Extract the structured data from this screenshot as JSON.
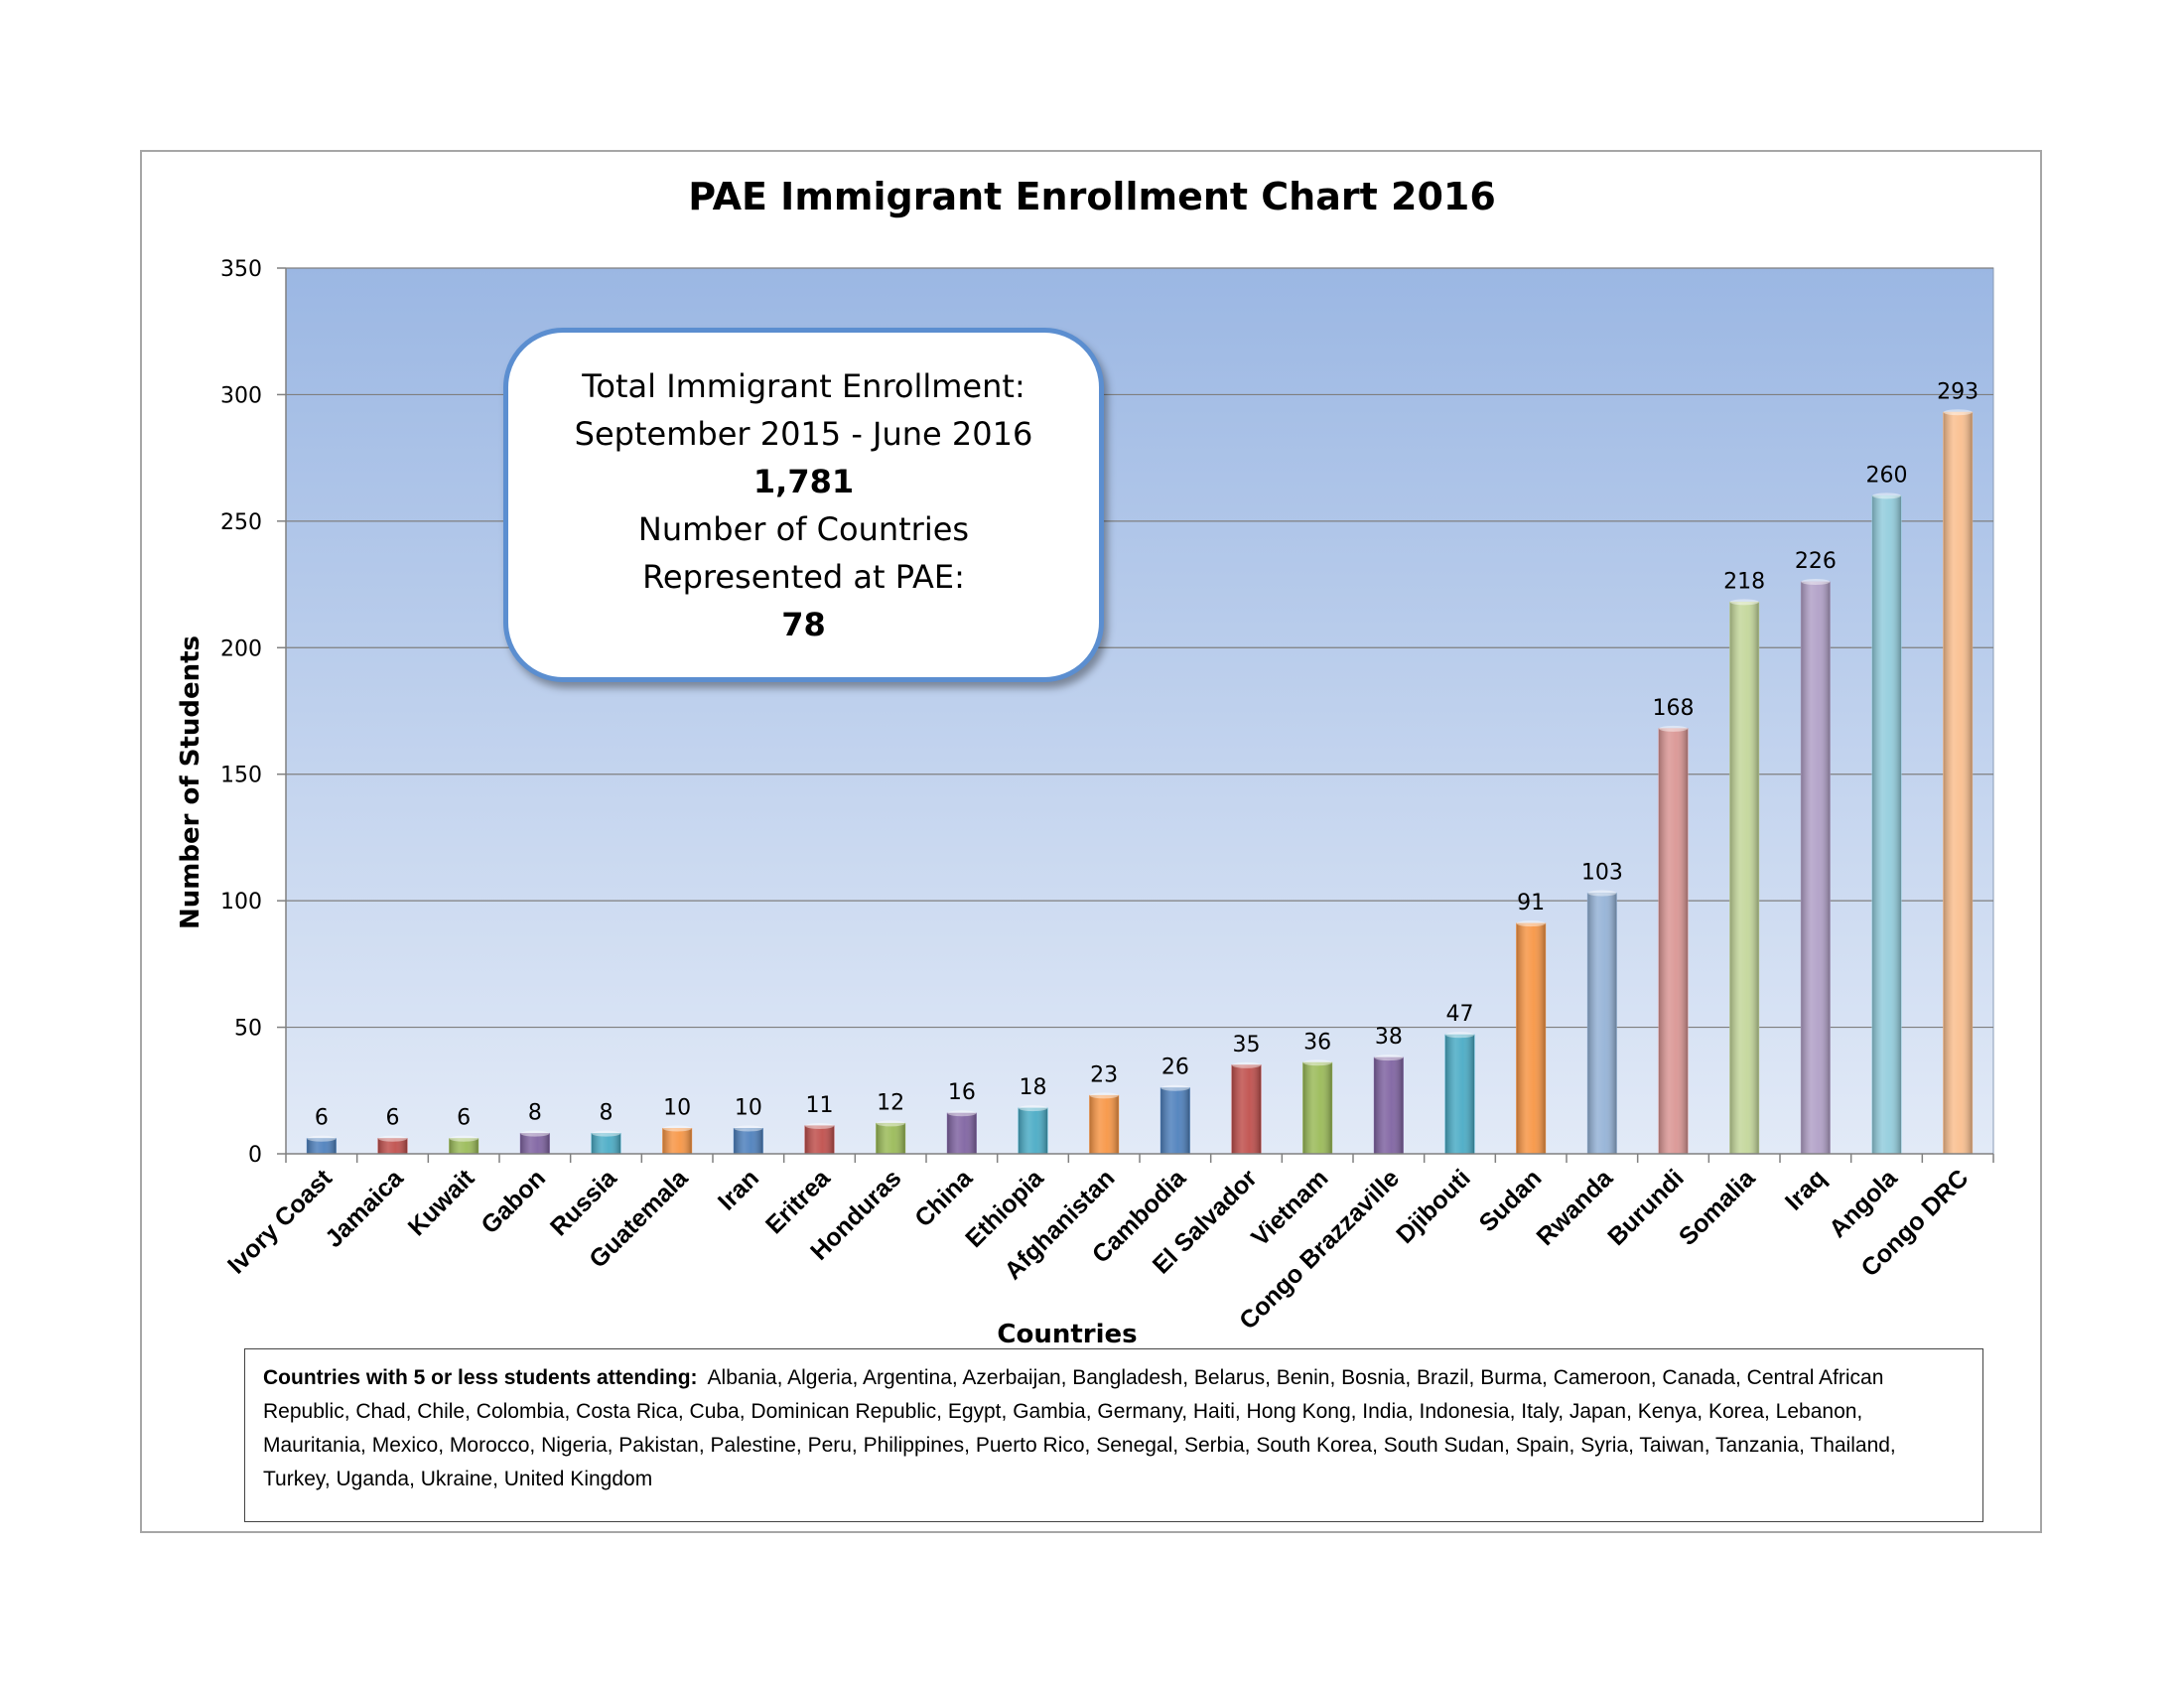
{
  "chart_data": {
    "type": "bar",
    "title": "PAE Immigrant Enrollment Chart 2016",
    "xlabel": "Countries",
    "ylabel": "Number of Students",
    "ylim": [
      0,
      350
    ],
    "yticks": [
      "0",
      "50",
      "100",
      "150",
      "200",
      "250",
      "300",
      "350"
    ],
    "grid": true,
    "categories": [
      "Ivory Coast",
      "Jamaica",
      "Kuwait",
      "Gabon",
      "Russia",
      "Guatemala",
      "Iran",
      "Eritrea",
      "Honduras",
      "China",
      "Ethiopia",
      "Afghanistan",
      "Cambodia",
      "El Salvador",
      "Vietnam",
      "Congo Brazzaville",
      "Djibouti",
      "Sudan",
      "Rwanda",
      "Burundi",
      "Somalia",
      "Iraq",
      "Angola",
      "Congo DRC"
    ],
    "values": [
      6,
      6,
      6,
      8,
      8,
      10,
      10,
      11,
      12,
      16,
      18,
      23,
      26,
      35,
      36,
      38,
      47,
      91,
      103,
      168,
      218,
      226,
      260,
      293
    ],
    "bar_colors": [
      "#4f81bd",
      "#c0504d",
      "#9bbb59",
      "#8064a2",
      "#4bacc6",
      "#f79646",
      "#4f81bd",
      "#c0504d",
      "#9bbb59",
      "#8064a2",
      "#4bacc6",
      "#f79646",
      "#4f81bd",
      "#c0504d",
      "#9bbb59",
      "#8064a2",
      "#4bacc6",
      "#f79646",
      "#95b3d7",
      "#da9694",
      "#c4d79b",
      "#b1a0c7",
      "#93cddd",
      "#fabf8f"
    ]
  },
  "info_box": {
    "line1": "Total Immigrant Enrollment:",
    "line2": "September 2015 - June 2016",
    "total": "1,781",
    "line3": "Number of Countries",
    "line4": "Represented at PAE:",
    "countries": "78"
  },
  "footnote": {
    "heading": "Countries with 5 or less students attending:",
    "text": "Albania, Algeria, Argentina, Azerbaijan, Bangladesh, Belarus, Benin, Bosnia, Brazil, Burma, Cameroon, Canada, Central African Republic, Chad, Chile, Colombia, Costa Rica, Cuba, Dominican Republic, Egypt, Gambia, Germany, Haiti, Hong Kong, India, Indonesia, Italy, Japan, Kenya, Korea, Lebanon, Mauritania, Mexico, Morocco, Nigeria, Pakistan, Palestine, Peru, Philippines, Puerto Rico, Senegal, Serbia, South Korea, South Sudan, Spain, Syria, Taiwan, Tanzania, Thailand, Turkey, Uganda, Ukraine, United Kingdom"
  }
}
